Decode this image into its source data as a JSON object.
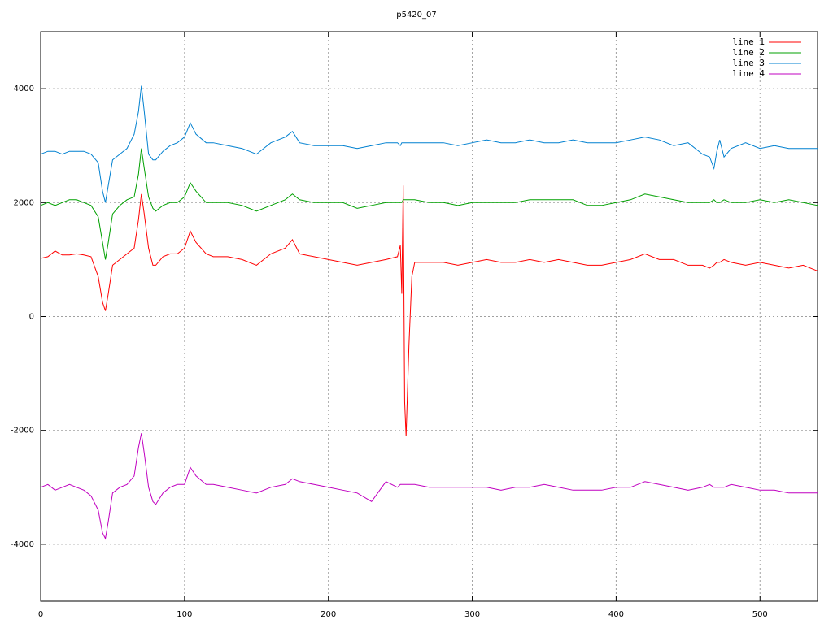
{
  "chart_data": {
    "type": "line",
    "title": "p5420_07",
    "x": [
      0,
      5,
      10,
      15,
      20,
      25,
      30,
      35,
      40,
      43,
      45,
      47,
      50,
      55,
      60,
      65,
      68,
      70,
      72,
      75,
      78,
      80,
      85,
      90,
      95,
      100,
      104,
      108,
      115,
      120,
      130,
      140,
      150,
      160,
      170,
      175,
      180,
      190,
      200,
      210,
      220,
      230,
      240,
      248,
      250,
      251,
      252,
      253,
      254,
      256,
      258,
      260,
      270,
      280,
      290,
      300,
      310,
      320,
      330,
      340,
      350,
      360,
      370,
      380,
      390,
      400,
      410,
      420,
      430,
      440,
      450,
      460,
      465,
      468,
      470,
      472,
      475,
      480,
      490,
      500,
      510,
      520,
      530,
      540
    ],
    "series": [
      {
        "name": "line 1",
        "color": "#ff0000",
        "values": [
          1020,
          1050,
          1150,
          1080,
          1080,
          1100,
          1080,
          1050,
          700,
          250,
          100,
          400,
          900,
          1000,
          1100,
          1200,
          1700,
          2150,
          1800,
          1200,
          900,
          900,
          1050,
          1100,
          1100,
          1200,
          1500,
          1300,
          1100,
          1050,
          1050,
          1000,
          900,
          1100,
          1200,
          1350,
          1100,
          1050,
          1000,
          950,
          900,
          950,
          1000,
          1050,
          1250,
          400,
          2300,
          -1500,
          -2100,
          -500,
          700,
          950,
          950,
          950,
          900,
          950,
          1000,
          950,
          950,
          1000,
          950,
          1000,
          950,
          900,
          900,
          950,
          1000,
          1100,
          1000,
          1000,
          900,
          900,
          850,
          900,
          950,
          950,
          1000,
          950,
          900,
          950,
          900,
          850,
          900,
          800
        ]
      },
      {
        "name": "line 2",
        "color": "#00a000",
        "values": [
          1950,
          2000,
          1950,
          2000,
          2050,
          2050,
          2000,
          1950,
          1750,
          1300,
          1000,
          1300,
          1800,
          1950,
          2050,
          2100,
          2500,
          2950,
          2600,
          2100,
          1900,
          1850,
          1950,
          2000,
          2000,
          2100,
          2350,
          2200,
          2000,
          2000,
          2000,
          1950,
          1850,
          1950,
          2050,
          2150,
          2050,
          2000,
          2000,
          2000,
          1900,
          1950,
          2000,
          2000,
          2000,
          2000,
          2050,
          2050,
          2050,
          2050,
          2050,
          2050,
          2000,
          2000,
          1950,
          2000,
          2000,
          2000,
          2000,
          2050,
          2050,
          2050,
          2050,
          1950,
          1950,
          2000,
          2050,
          2150,
          2100,
          2050,
          2000,
          2000,
          2000,
          2050,
          2000,
          2000,
          2050,
          2000,
          2000,
          2050,
          2000,
          2050,
          2000,
          1950
        ]
      },
      {
        "name": "line 3",
        "color": "#0080d0",
        "values": [
          2850,
          2900,
          2900,
          2850,
          2900,
          2900,
          2900,
          2850,
          2700,
          2200,
          2000,
          2300,
          2750,
          2850,
          2950,
          3200,
          3600,
          4050,
          3600,
          2850,
          2750,
          2750,
          2900,
          3000,
          3050,
          3150,
          3400,
          3200,
          3050,
          3050,
          3000,
          2950,
          2850,
          3050,
          3150,
          3250,
          3050,
          3000,
          3000,
          3000,
          2950,
          3000,
          3050,
          3050,
          3000,
          3050,
          3050,
          3050,
          3050,
          3050,
          3050,
          3050,
          3050,
          3050,
          3000,
          3050,
          3100,
          3050,
          3050,
          3100,
          3050,
          3050,
          3100,
          3050,
          3050,
          3050,
          3100,
          3150,
          3100,
          3000,
          3050,
          2850,
          2800,
          2600,
          2900,
          3100,
          2800,
          2950,
          3050,
          2950,
          3000,
          2950,
          2950,
          2950
        ]
      },
      {
        "name": "line 4",
        "color": "#c000c0",
        "values": [
          -3000,
          -2950,
          -3050,
          -3000,
          -2950,
          -3000,
          -3050,
          -3150,
          -3400,
          -3800,
          -3900,
          -3600,
          -3100,
          -3000,
          -2950,
          -2800,
          -2300,
          -2050,
          -2400,
          -3000,
          -3250,
          -3300,
          -3100,
          -3000,
          -2950,
          -2950,
          -2650,
          -2800,
          -2950,
          -2950,
          -3000,
          -3050,
          -3100,
          -3000,
          -2950,
          -2850,
          -2900,
          -2950,
          -3000,
          -3050,
          -3100,
          -3250,
          -2900,
          -3000,
          -2950,
          -2950,
          -2950,
          -2950,
          -2950,
          -2950,
          -2950,
          -2950,
          -3000,
          -3000,
          -3000,
          -3000,
          -3000,
          -3050,
          -3000,
          -3000,
          -2950,
          -3000,
          -3050,
          -3050,
          -3050,
          -3000,
          -3000,
          -2900,
          -2950,
          -3000,
          -3050,
          -3000,
          -2950,
          -3000,
          -3000,
          -3000,
          -3000,
          -2950,
          -3000,
          -3050,
          -3050,
          -3100,
          -3100,
          -3100
        ]
      }
    ],
    "xlim": [
      0,
      540
    ],
    "ylim": [
      -5000,
      5000
    ],
    "xticks": [
      0,
      100,
      200,
      300,
      400,
      500
    ],
    "yticks": [
      -4000,
      -2000,
      0,
      2000,
      4000
    ],
    "grid": true,
    "legend": "top-right"
  }
}
